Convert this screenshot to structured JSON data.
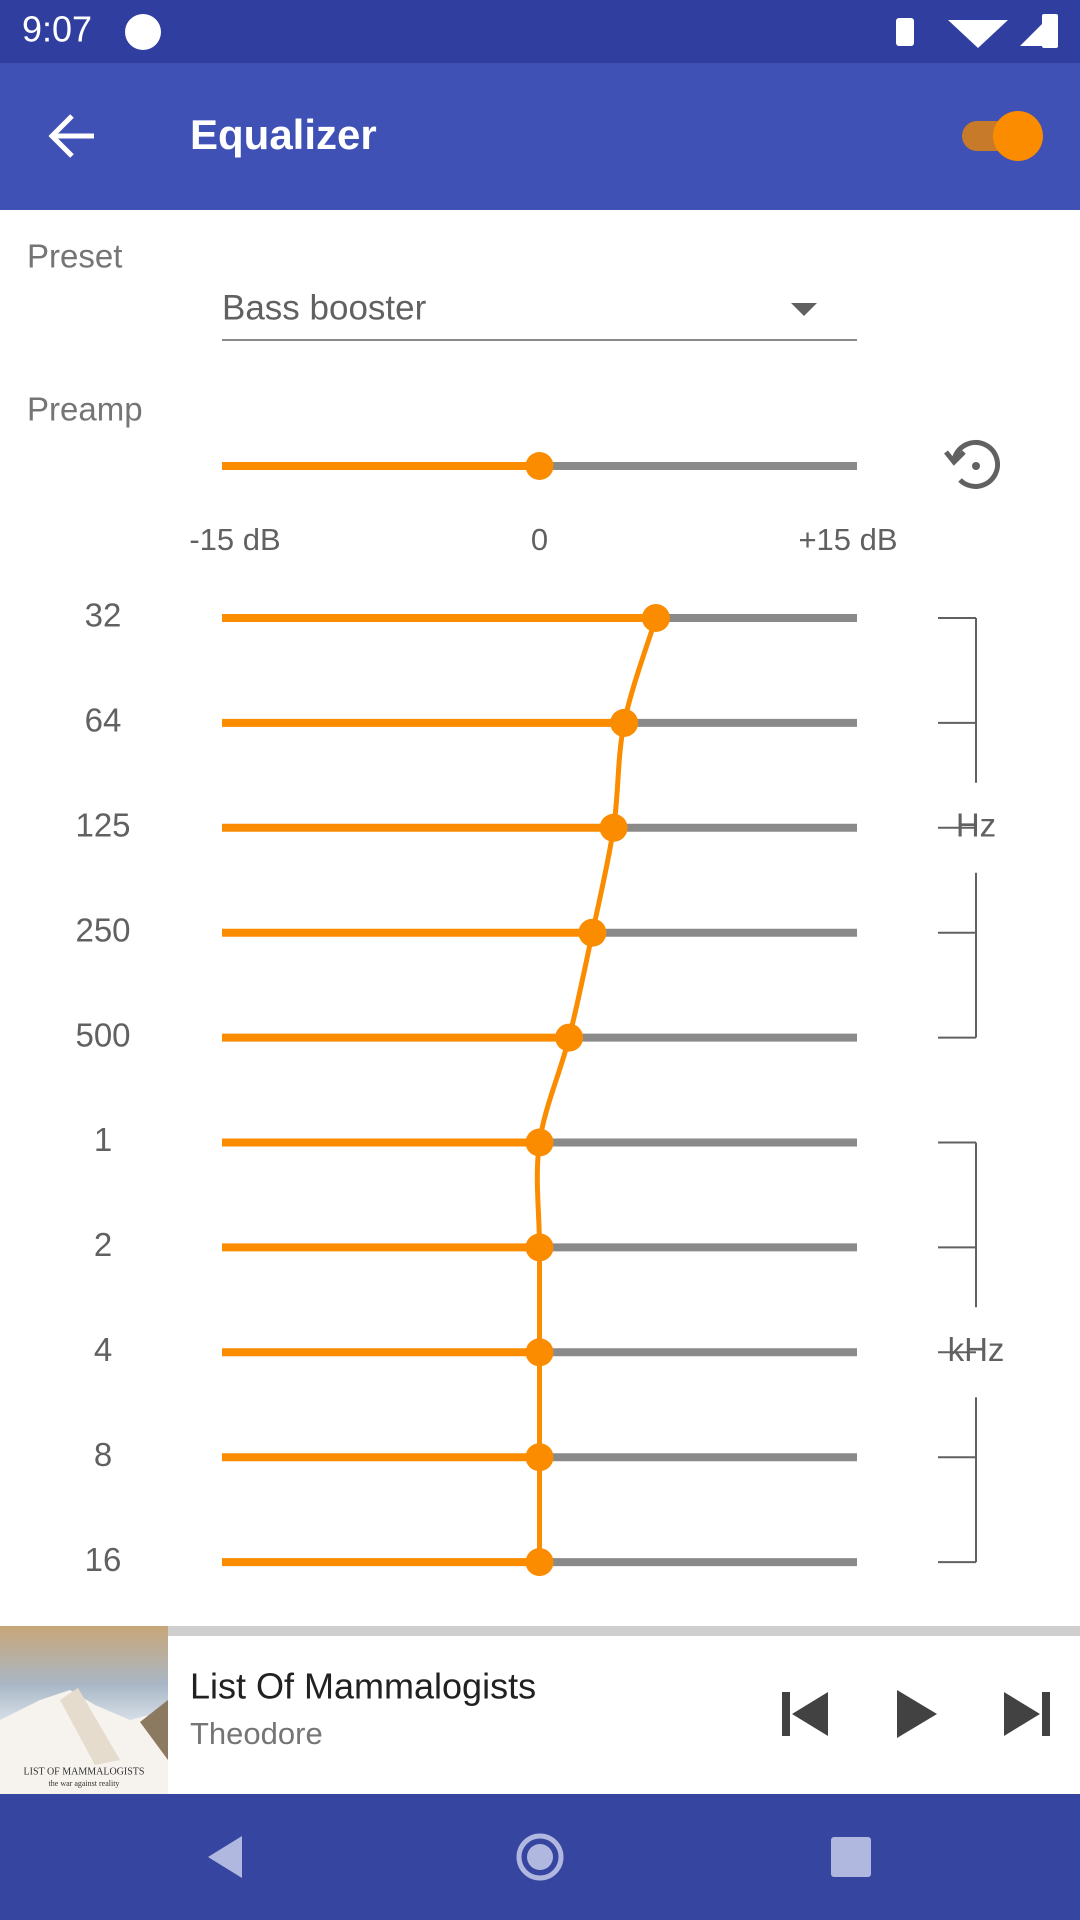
{
  "status_bar": {
    "time": "9:07"
  },
  "app_bar": {
    "title": "Equalizer",
    "enabled": true
  },
  "preset": {
    "label": "Preset",
    "value": "Bass booster"
  },
  "preamp": {
    "label": "Preamp",
    "value": 0,
    "scale": [
      {
        "value": -15,
        "label": "-15 dB"
      },
      {
        "value": 0,
        "label": "0"
      },
      {
        "value": 15,
        "label": "+15 dB"
      }
    ]
  },
  "bands": [
    {
      "label": "32",
      "value": 5.5
    },
    {
      "label": "64",
      "value": 4
    },
    {
      "label": "125",
      "value": 3.5
    },
    {
      "label": "250",
      "value": 2.5
    },
    {
      "label": "500",
      "value": 1.4
    },
    {
      "label": "1",
      "value": 0
    },
    {
      "label": "2",
      "value": 0
    },
    {
      "label": "4",
      "value": 0
    },
    {
      "label": "8",
      "value": 0
    },
    {
      "label": "16",
      "value": 0
    }
  ],
  "band_groups": [
    {
      "label": "Hz"
    },
    {
      "label": "kHz"
    }
  ],
  "now_playing": {
    "title": "List Of Mammalogists",
    "artist": "Theodore",
    "album_art_text": [
      "LIST OF MAMMALOGISTS",
      "the war against reality"
    ]
  }
}
